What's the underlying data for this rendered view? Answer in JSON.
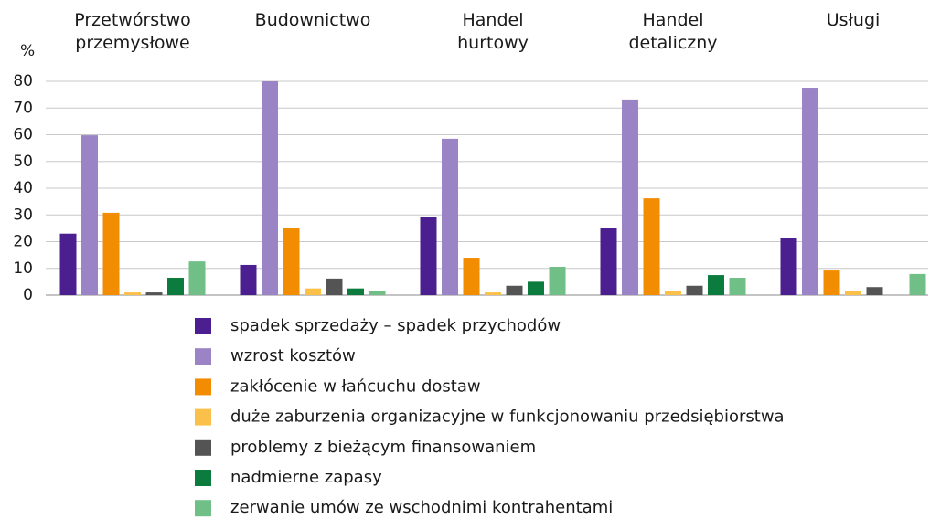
{
  "chart_data": {
    "type": "bar",
    "y_label": "%",
    "categories": [
      "Przetwórstwo przemysłowe",
      "Budownictwo",
      "Handel hurtowy",
      "Handel detaliczny",
      "Usługi"
    ],
    "series": [
      {
        "name": "spadek sprzedaży – spadek przychodów",
        "color": "#4b1f8f",
        "values": [
          23,
          11.3,
          29.4,
          25.3,
          21.2
        ]
      },
      {
        "name": "wzrost kosztów",
        "color": "#9b84c6",
        "values": [
          59.8,
          80,
          58.5,
          73.2,
          77.6
        ]
      },
      {
        "name": "zakłócenie w łańcuchu dostaw",
        "color": "#f28c00",
        "values": [
          30.8,
          25.3,
          14,
          36.2,
          9.2
        ]
      },
      {
        "name": "duże zaburzenia organizacyjne w funkcjonowaniu przedsiębiorstwa",
        "color": "#fbc04a",
        "values": [
          1,
          2.5,
          1,
          1.5,
          1.5
        ]
      },
      {
        "name": "problemy z bieżącym finansowaniem",
        "color": "#545454",
        "values": [
          1,
          6.2,
          3.5,
          3.5,
          3
        ]
      },
      {
        "name": "nadmierne zapasy",
        "color": "#0b7b3e",
        "values": [
          6.5,
          2.5,
          5,
          7.5,
          0
        ]
      },
      {
        "name": "zerwanie umów ze wschodnimi kontrahentami",
        "color": "#6fbf86",
        "values": [
          12.6,
          1.5,
          10.6,
          6.5,
          7.9
        ]
      }
    ],
    "ylim": [
      0,
      80
    ],
    "yticks": [
      0,
      10,
      20,
      30,
      40,
      50,
      60,
      70,
      80
    ],
    "grid": true
  }
}
